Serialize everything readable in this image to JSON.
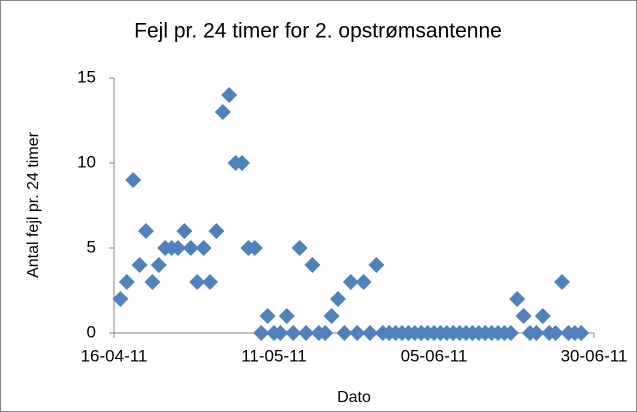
{
  "chart_data": {
    "type": "scatter",
    "title": "Fejl pr. 24 timer for 2. opstrømsantenne",
    "x_label": "Dato",
    "y_label": "Antal fejl pr. 24 timer",
    "x": [
      "2011-04-17",
      "2011-04-18",
      "2011-04-19",
      "2011-04-20",
      "2011-04-21",
      "2011-04-22",
      "2011-04-23",
      "2011-04-24",
      "2011-04-25",
      "2011-04-26",
      "2011-04-27",
      "2011-04-28",
      "2011-04-29",
      "2011-04-30",
      "2011-05-01",
      "2011-05-02",
      "2011-05-03",
      "2011-05-04",
      "2011-05-05",
      "2011-05-06",
      "2011-05-07",
      "2011-05-08",
      "2011-05-09",
      "2011-05-10",
      "2011-05-11",
      "2011-05-12",
      "2011-05-13",
      "2011-05-14",
      "2011-05-15",
      "2011-05-16",
      "2011-05-17",
      "2011-05-18",
      "2011-05-19",
      "2011-05-20",
      "2011-05-21",
      "2011-05-22",
      "2011-05-23",
      "2011-05-24",
      "2011-05-25",
      "2011-05-26",
      "2011-05-27",
      "2011-05-28",
      "2011-05-29",
      "2011-05-30",
      "2011-05-31",
      "2011-06-01",
      "2011-06-02",
      "2011-06-03",
      "2011-06-04",
      "2011-06-05",
      "2011-06-06",
      "2011-06-07",
      "2011-06-08",
      "2011-06-09",
      "2011-06-10",
      "2011-06-11",
      "2011-06-12",
      "2011-06-13",
      "2011-06-14",
      "2011-06-15",
      "2011-06-16",
      "2011-06-17",
      "2011-06-18",
      "2011-06-19",
      "2011-06-20",
      "2011-06-21",
      "2011-06-22",
      "2011-06-23",
      "2011-06-24",
      "2011-06-25",
      "2011-06-26",
      "2011-06-27",
      "2011-06-28"
    ],
    "values": [
      2,
      3,
      9,
      4,
      6,
      3,
      4,
      5,
      5,
      5,
      6,
      5,
      3,
      5,
      3,
      6,
      13,
      14,
      10,
      10,
      5,
      5,
      0,
      1,
      0,
      0,
      1,
      0,
      5,
      0,
      4,
      0,
      0,
      1,
      2,
      0,
      3,
      0,
      3,
      0,
      4,
      0,
      0,
      0,
      0,
      0,
      0,
      0,
      0,
      0,
      0,
      0,
      0,
      0,
      0,
      0,
      0,
      0,
      0,
      0,
      0,
      0,
      2,
      1,
      0,
      0,
      1,
      0,
      0,
      3,
      0,
      0,
      0
    ],
    "color": "#4f81bd",
    "xlim": [
      "2011-04-16",
      "2011-06-30"
    ],
    "xticks": [
      {
        "value": "2011-04-16",
        "label": "16-04-11"
      },
      {
        "value": "2011-05-11",
        "label": "11-05-11"
      },
      {
        "value": "2011-06-05",
        "label": "05-06-11"
      },
      {
        "value": "2011-06-30",
        "label": "30-06-11"
      }
    ],
    "ylim": [
      0,
      15
    ],
    "yticks": [
      0,
      5,
      10,
      15
    ],
    "grid": false
  }
}
